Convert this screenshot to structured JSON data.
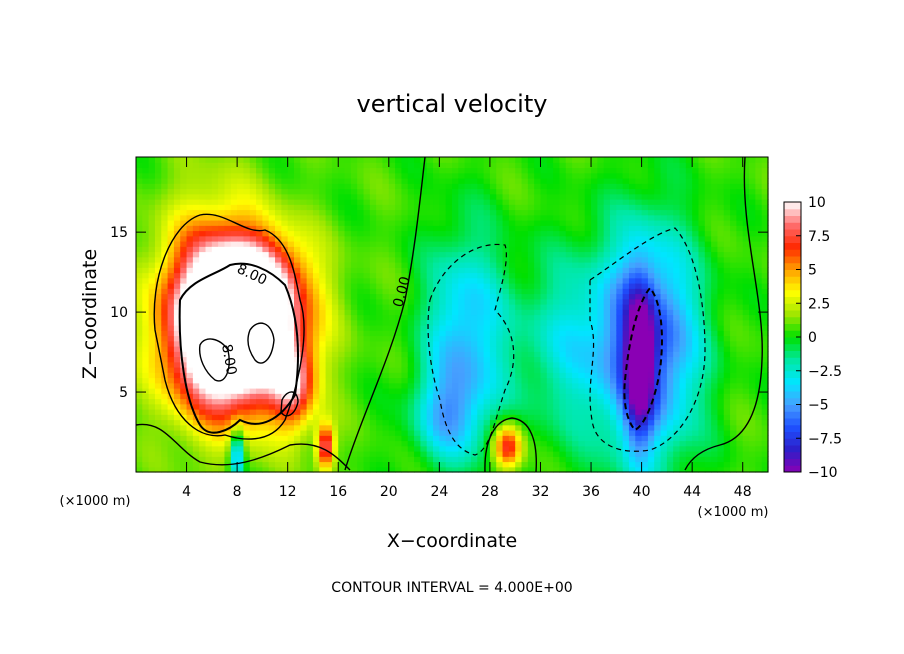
{
  "chart_data": {
    "type": "heatmap",
    "title": "vertical velocity",
    "xlabel": "X−coordinate",
    "ylabel": "Z−coordinate",
    "x_unit_note": "(×1000 m)",
    "z_unit_note": "(×1000 m)",
    "footer": "CONTOUR INTERVAL = 4.000E+00",
    "xlim": [
      0,
      50
    ],
    "ylim": [
      0,
      19.7
    ],
    "x_ticks": [
      4,
      8,
      12,
      16,
      20,
      24,
      28,
      32,
      36,
      40,
      44,
      48
    ],
    "x_tick_labels": [
      "4",
      "8",
      "12",
      "16",
      "20",
      "24",
      "28",
      "32",
      "36",
      "40",
      "44",
      "48"
    ],
    "y_ticks": [
      5,
      10,
      15
    ],
    "y_tick_labels": [
      "5",
      "10",
      "15"
    ],
    "colorbar": {
      "range": [
        -10,
        10
      ],
      "ticks": [
        10,
        7.5,
        5,
        2.5,
        0,
        -2.5,
        -5,
        -7.5,
        -10
      ],
      "tick_labels": [
        "10",
        "7.5",
        "5",
        "2.5",
        "0",
        "−2.5",
        "−5",
        "−7.5",
        "−10"
      ]
    },
    "contour_labels": [
      "8.00",
      "8.00",
      "0.00"
    ],
    "features": [
      {
        "kind": "updraft",
        "x": 8.0,
        "z": 8.5,
        "sx": 3.4,
        "sz": 3.2,
        "peak": 14
      },
      {
        "kind": "updraft",
        "x": 6.0,
        "z": 10.5,
        "sx": 3.0,
        "sz": 4.5,
        "peak": 6
      },
      {
        "kind": "updraft",
        "x": 9.5,
        "z": 12.0,
        "sx": 3.0,
        "sz": 2.2,
        "peak": 6
      },
      {
        "kind": "updraft",
        "x": 12.5,
        "z": 5.5,
        "sx": 1.2,
        "sz": 2.0,
        "peak": 6
      },
      {
        "kind": "updraft",
        "x": 15.0,
        "z": 1.6,
        "sx": 0.5,
        "sz": 1.0,
        "peak": 8
      },
      {
        "kind": "updraft",
        "x": 29.4,
        "z": 1.6,
        "sx": 0.8,
        "sz": 1.0,
        "peak": 7.5
      },
      {
        "kind": "downdraft",
        "x": 8.0,
        "z": 1.2,
        "sx": 0.4,
        "sz": 1.2,
        "peak": -6
      },
      {
        "kind": "downdraft",
        "x": 26.0,
        "z": 8.5,
        "sx": 2.2,
        "sz": 4.5,
        "peak": -5
      },
      {
        "kind": "downdraft",
        "x": 24.5,
        "z": 3.5,
        "sx": 2.0,
        "sz": 2.0,
        "peak": -3.5
      },
      {
        "kind": "downdraft",
        "x": 34.0,
        "z": 8.0,
        "sx": 3.0,
        "sz": 4.0,
        "peak": -3
      },
      {
        "kind": "downdraft",
        "x": 40.5,
        "z": 8.0,
        "sx": 2.8,
        "sz": 5.0,
        "peak": -8
      },
      {
        "kind": "downdraft",
        "x": 39.8,
        "z": 6.5,
        "sx": 0.8,
        "sz": 3.5,
        "peak": -6
      }
    ]
  },
  "colors": {
    "scale": [
      "#8a00b4",
      "#2d1ec8",
      "#1e50ff",
      "#46a0ff",
      "#00e6ff",
      "#00e8a0",
      "#00e000",
      "#9ee600",
      "#ffff00",
      "#ffa000",
      "#ff2800",
      "#ff6e6e",
      "#ffffff"
    ]
  }
}
